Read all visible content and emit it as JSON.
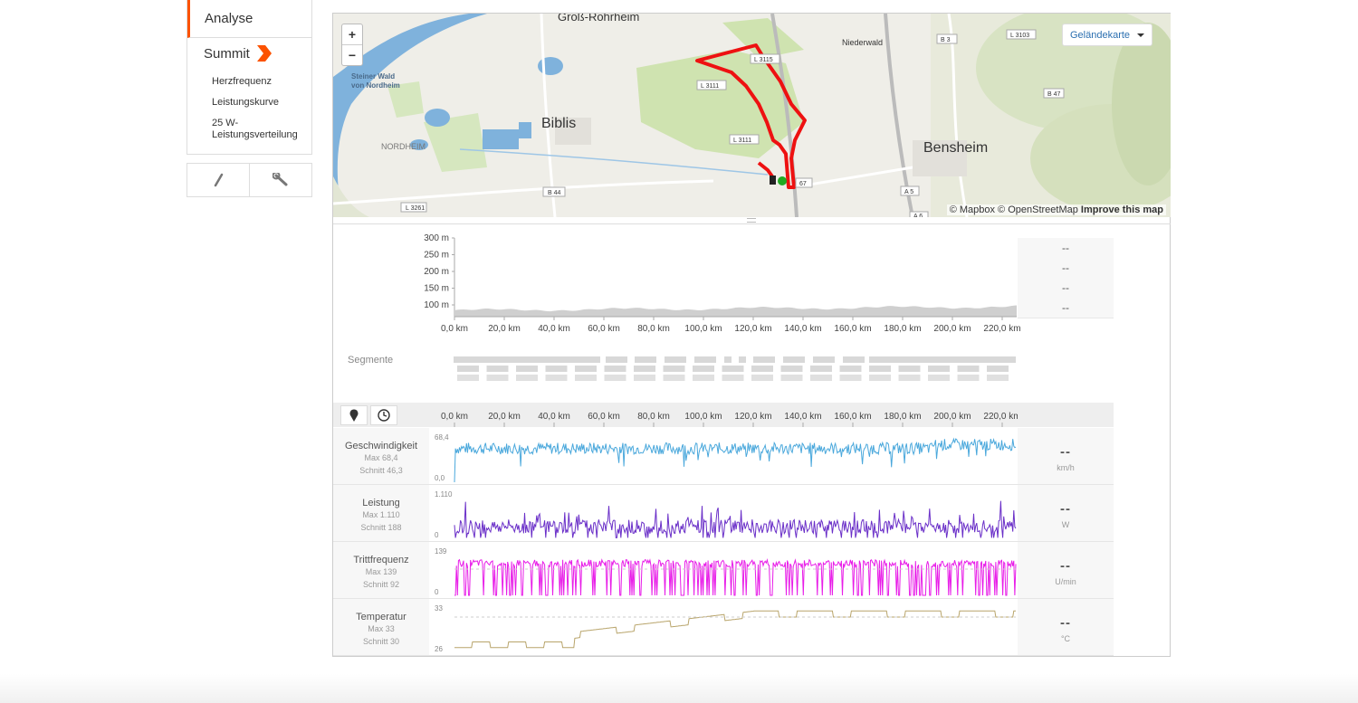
{
  "sidebar": {
    "analyse": "Analyse",
    "summit": "Summit",
    "items": [
      "Herzfrequenz",
      "Leistungskurve",
      "25 W-",
      "Leistungsverteilung"
    ]
  },
  "map": {
    "zoom_in": "+",
    "zoom_out": "−",
    "type_label": "Geländekarte",
    "attribution_1": "© Mapbox © OpenStreetMap",
    "attribution_2": "Improve this map",
    "places": {
      "gross_rohrheim": "Groß-Rohrheim",
      "steiner_wald_1": "Steiner Wald",
      "steiner_wald_2": "von Nordheim",
      "biblis": "Biblis",
      "nordheim": "NORDHEIM",
      "bensheim": "Bensheim",
      "niederwald": "Niederwald"
    },
    "roads": [
      "L 3261",
      "B 44",
      "L 3111",
      "L 3111",
      "L 3115",
      "B 3",
      "L 3103",
      "B 47",
      "A 5",
      "A 6",
      "67"
    ],
    "colors": {
      "route": "#ee1111",
      "start": "#22aa22",
      "water": "#7fb2dc",
      "forest": "#cfe3b0"
    }
  },
  "elevation": {
    "y_ticks": [
      "300 m",
      "250 m",
      "200 m",
      "150 m",
      "100 m"
    ],
    "x_ticks": [
      "0,0 km",
      "20,0 km",
      "40,0 km",
      "60,0 km",
      "80,0 km",
      "100,0 km",
      "120,0 km",
      "140,0 km",
      "160,0 km",
      "180,0 km",
      "200,0 km",
      "220,0 km"
    ],
    "stats": [
      "--",
      "--",
      "--",
      "--"
    ]
  },
  "segments_label": "Segmente",
  "streams": {
    "x_ticks": [
      "0,0 km",
      "20,0 km",
      "40,0 km",
      "60,0 km",
      "80,0 km",
      "100,0 km",
      "120,0 km",
      "140,0 km",
      "160,0 km",
      "180,0 km",
      "200,0 km",
      "220,0 km"
    ],
    "rows": [
      {
        "name": "Geschwindigkeit",
        "max": "Max 68,4",
        "avg": "Schnitt 46,3",
        "ymax": "68,4",
        "ymin": "0,0",
        "value": "--",
        "unit": "km/h",
        "color": "#4aa8dc"
      },
      {
        "name": "Leistung",
        "max": "Max 1.110",
        "avg": "Schnitt 188",
        "ymax": "1.110",
        "ymin": "0",
        "value": "--",
        "unit": "W",
        "color": "#6a2fc8"
      },
      {
        "name": "Trittfrequenz",
        "max": "Max 139",
        "avg": "Schnitt 92",
        "ymax": "139",
        "ymin": "0",
        "value": "--",
        "unit": "U/min",
        "color": "#e81ce8"
      },
      {
        "name": "Temperatur",
        "max": "Max 33",
        "avg": "Schnitt 30",
        "ymax": "33",
        "ymin": "26",
        "value": "--",
        "unit": "°C",
        "color": "#b8a46a"
      }
    ]
  }
}
